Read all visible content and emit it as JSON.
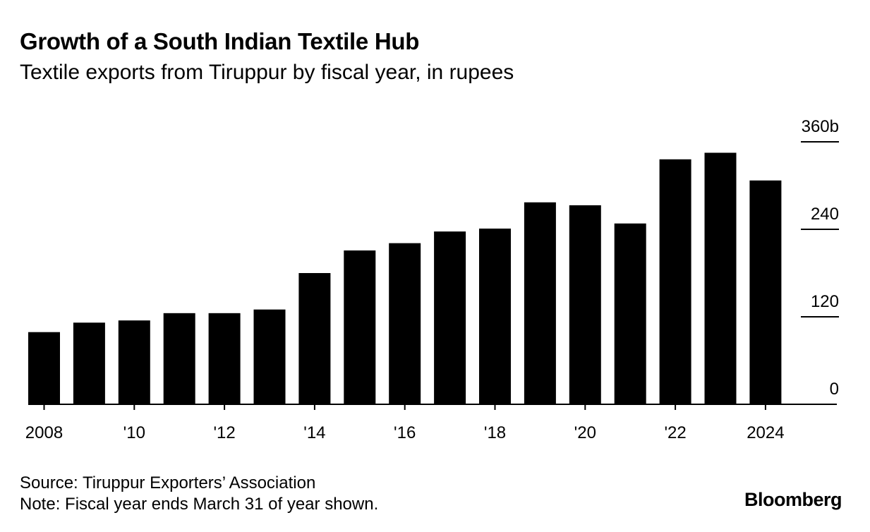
{
  "chart_data": {
    "type": "bar",
    "title": "Growth of a South Indian Textile Hub",
    "subtitle": "Textile exports from Tiruppur by fiscal year, in rupees",
    "categories": [
      "2008",
      "2009",
      "2010",
      "2011",
      "2012",
      "2013",
      "2014",
      "2015",
      "2016",
      "2017",
      "2018",
      "2019",
      "2020",
      "2021",
      "2022",
      "2023",
      "2024"
    ],
    "values": [
      99,
      112,
      115,
      125,
      125,
      130,
      180,
      211,
      221,
      237,
      241,
      277,
      273,
      248,
      336,
      345,
      307
    ],
    "x_tick_labels": [
      "2008",
      "",
      "'10",
      "",
      "'12",
      "",
      "'14",
      "",
      "'16",
      "",
      "'18",
      "",
      "'20",
      "",
      "'22",
      "",
      "2024"
    ],
    "y_ticks": [
      0,
      120,
      240,
      360
    ],
    "y_tick_labels": [
      "0",
      "120",
      "240",
      "360b"
    ],
    "ylim": [
      0,
      360
    ],
    "xlabel": "",
    "ylabel": "",
    "grid": false,
    "bar_color": "#000000"
  },
  "footer": {
    "source": "Source: Tiruppur Exporters’ Association",
    "note": "Note: Fiscal year ends March 31 of year shown.",
    "logo": "Bloomberg"
  }
}
